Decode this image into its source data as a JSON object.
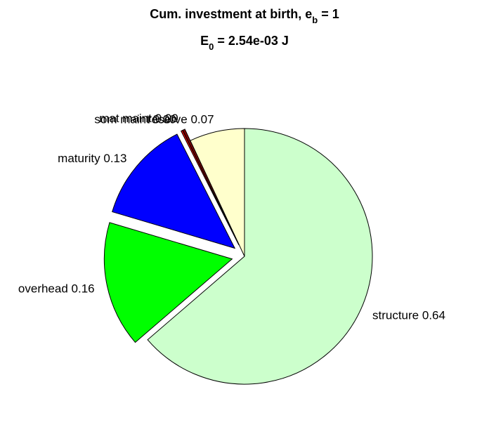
{
  "chart_data": {
    "type": "pie",
    "title": [
      "Cum. investment at birth, e",
      "b",
      " = 1"
    ],
    "subtitle": [
      "E",
      "0",
      " = 2.54e-03 J"
    ],
    "categories": [
      "structure",
      "overhead",
      "maturity",
      "som maint",
      "mat maint",
      "reserve"
    ],
    "values": [
      0.64,
      0.16,
      0.13,
      0.002,
      0.003,
      0.07
    ],
    "value_labels": [
      "0.64",
      "0.16",
      "0.13",
      "0.00",
      "0.00",
      "0.07"
    ],
    "colors": [
      "#ccffcc",
      "#00ff00",
      "#0000ff",
      "#ff0000",
      "#800000",
      "#ffffcc"
    ],
    "explode": [
      false,
      true,
      true,
      true,
      true,
      false
    ]
  }
}
